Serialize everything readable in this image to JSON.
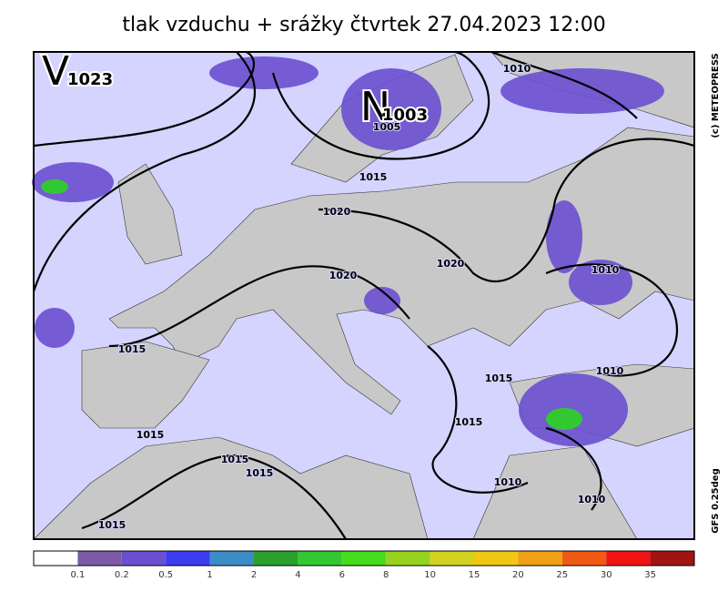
{
  "title": "tlak vzduchu + srážky čtvrtek 27.04.2023 12:00",
  "pressure_centers": [
    {
      "letter": "V",
      "value": "1023"
    },
    {
      "letter": "N",
      "value": "1003"
    }
  ],
  "isobar_labels": [
    "1010",
    "1015",
    "1005",
    "1020",
    "1020",
    "1020",
    "1010",
    "1015",
    "1015",
    "1010",
    "1015",
    "1015",
    "1015",
    "1015",
    "1010",
    "1010",
    "1015"
  ],
  "credits": [
    "(c) METEOPRESS",
    "GFS 0.25deg"
  ],
  "legend": {
    "colors": [
      "#ffffff",
      "#7c5aa8",
      "#6a4fd0",
      "#3c3cf0",
      "#3c8cc8",
      "#2ca02c",
      "#32c832",
      "#46dc1e",
      "#96d21e",
      "#d2d21e",
      "#f0c814",
      "#f0a014",
      "#f05a14",
      "#f01414",
      "#a01414"
    ],
    "labels": [
      "0.1",
      "0.2",
      "0.5",
      "1",
      "2",
      "4",
      "6",
      "8",
      "10",
      "15",
      "20",
      "25",
      "30",
      "35"
    ]
  }
}
